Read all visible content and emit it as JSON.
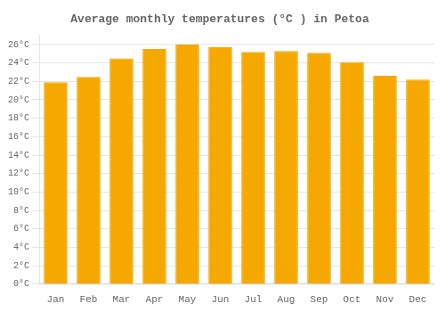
{
  "chart_data": {
    "type": "bar",
    "title": "Average monthly temperatures (°C ) in Petoa",
    "categories": [
      "Jan",
      "Feb",
      "Mar",
      "Apr",
      "May",
      "Jun",
      "Jul",
      "Aug",
      "Sep",
      "Oct",
      "Nov",
      "Dec"
    ],
    "values": [
      21.9,
      22.5,
      24.5,
      25.5,
      26.0,
      25.7,
      25.2,
      25.3,
      25.1,
      24.1,
      22.6,
      22.2
    ],
    "color": "#F5A800",
    "ylim": [
      0,
      27
    ],
    "yticks": [
      {
        "value": 0,
        "label": "0°C"
      },
      {
        "value": 2,
        "label": "2°C"
      },
      {
        "value": 4,
        "label": "4°C"
      },
      {
        "value": 6,
        "label": "6°C"
      },
      {
        "value": 8,
        "label": "8°C"
      },
      {
        "value": 10,
        "label": "10°C"
      },
      {
        "value": 12,
        "label": "12°C"
      },
      {
        "value": 14,
        "label": "14°C"
      },
      {
        "value": 16,
        "label": "16°C"
      },
      {
        "value": 18,
        "label": "18°C"
      },
      {
        "value": 20,
        "label": "20°C"
      },
      {
        "value": 22,
        "label": "22°C"
      },
      {
        "value": 24,
        "label": "24°C"
      },
      {
        "value": 26,
        "label": "26°C"
      }
    ],
    "grid": true
  }
}
